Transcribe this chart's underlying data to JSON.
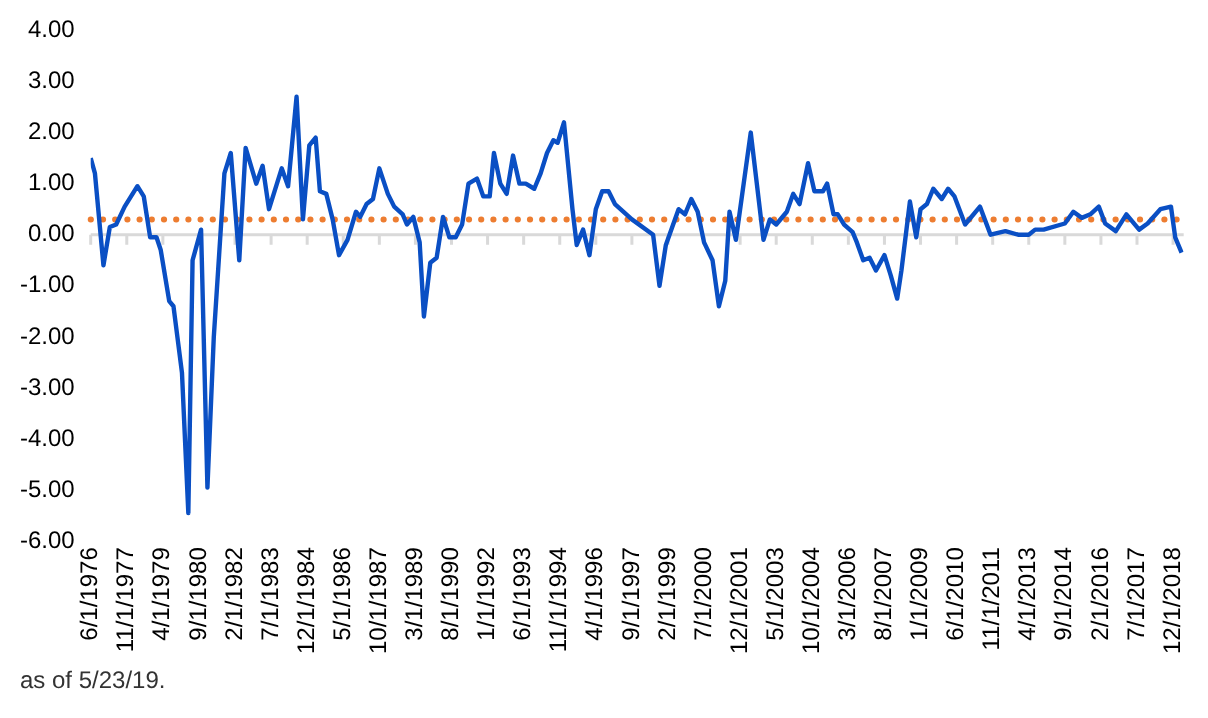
{
  "chart_data": {
    "type": "line",
    "x": [
      "1976-06",
      "1976-08",
      "1976-12",
      "1977-03",
      "1977-06",
      "1977-10",
      "1978-04",
      "1978-07",
      "1978-10",
      "1979-01",
      "1979-03",
      "1979-07",
      "1979-09",
      "1980-01",
      "1980-04",
      "1980-06",
      "1980-10",
      "1981-01",
      "1981-04",
      "1981-09",
      "1981-12",
      "1982-04",
      "1982-07",
      "1982-12",
      "1983-03",
      "1983-06",
      "1983-12",
      "1984-03",
      "1984-07",
      "1984-10",
      "1985-01",
      "1985-04",
      "1985-06",
      "1985-09",
      "1985-12",
      "1986-03",
      "1986-07",
      "1986-11",
      "1987-01",
      "1987-04",
      "1987-07",
      "1987-10",
      "1988-02",
      "1988-05",
      "1988-09",
      "1988-11",
      "1989-02",
      "1989-05",
      "1989-07",
      "1989-10",
      "1990-01",
      "1990-04",
      "1990-07",
      "1990-10",
      "1991-01",
      "1991-04",
      "1991-08",
      "1991-11",
      "1992-02",
      "1992-04",
      "1992-07",
      "1992-10",
      "1993-01",
      "1993-04",
      "1993-07",
      "1993-11",
      "1994-02",
      "1994-05",
      "1994-08",
      "1994-10",
      "1995-01",
      "1995-05",
      "1995-07",
      "1995-10",
      "1996-01",
      "1996-04",
      "1996-07",
      "1996-10",
      "1997-01",
      "1997-09",
      "1998-07",
      "1998-10",
      "1999-01",
      "1999-07",
      "1999-10",
      "2000-01",
      "2000-04",
      "2000-07",
      "2000-11",
      "2001-02",
      "2001-05",
      "2001-07",
      "2001-10",
      "2002-05",
      "2002-11",
      "2003-02",
      "2003-05",
      "2003-10",
      "2004-01",
      "2004-04",
      "2004-08",
      "2004-11",
      "2005-03",
      "2005-05",
      "2005-08",
      "2005-10",
      "2006-01",
      "2006-05",
      "2006-07",
      "2006-10",
      "2007-01",
      "2007-04",
      "2007-08",
      "2007-11",
      "2008-02",
      "2008-04",
      "2008-08",
      "2008-11",
      "2009-01",
      "2009-04",
      "2009-07",
      "2009-11",
      "2010-02",
      "2010-05",
      "2010-10",
      "2011-05",
      "2011-10",
      "2012-05",
      "2012-11",
      "2013-04",
      "2013-07",
      "2013-11",
      "2014-09",
      "2015-01",
      "2015-05",
      "2015-09",
      "2016-01",
      "2016-04",
      "2016-09",
      "2017-02",
      "2017-08",
      "2017-12",
      "2018-06",
      "2018-11",
      "2019-01",
      "2019-04"
    ],
    "series": [
      {
        "color": "#0a4fc4",
        "values": [
          1.5,
          1.2,
          -0.6,
          0.15,
          0.2,
          0.55,
          0.95,
          0.75,
          -0.05,
          -0.05,
          -0.3,
          -1.3,
          -1.4,
          -2.7,
          -5.45,
          -0.5,
          0.1,
          -4.95,
          -2.0,
          1.2,
          1.6,
          -0.5,
          1.7,
          1.0,
          1.35,
          0.5,
          1.3,
          0.95,
          2.7,
          0.3,
          1.75,
          1.9,
          0.85,
          0.8,
          0.3,
          -0.4,
          -0.1,
          0.45,
          0.35,
          0.6,
          0.7,
          1.3,
          0.8,
          0.55,
          0.4,
          0.2,
          0.35,
          -0.15,
          -1.6,
          -0.55,
          -0.45,
          0.35,
          -0.05,
          -0.05,
          0.2,
          1.0,
          1.1,
          0.75,
          0.75,
          1.6,
          1.0,
          0.8,
          1.55,
          1.0,
          1.0,
          0.9,
          1.2,
          1.6,
          1.85,
          1.8,
          2.2,
          0.5,
          -0.2,
          0.1,
          -0.4,
          0.5,
          0.85,
          0.85,
          0.6,
          0.3,
          0.0,
          -1.0,
          -0.2,
          0.5,
          0.4,
          0.7,
          0.45,
          -0.15,
          -0.5,
          -1.4,
          -0.9,
          0.45,
          -0.1,
          2.0,
          -0.1,
          0.3,
          0.2,
          0.45,
          0.8,
          0.6,
          1.4,
          0.85,
          0.85,
          1.0,
          0.4,
          0.4,
          0.2,
          0.05,
          -0.15,
          -0.5,
          -0.45,
          -0.7,
          -0.4,
          -0.8,
          -1.25,
          -0.7,
          0.65,
          -0.05,
          0.5,
          0.6,
          0.9,
          0.7,
          0.9,
          0.75,
          0.2,
          0.55,
          0.0,
          0.07,
          0.0,
          0.0,
          0.1,
          0.1,
          0.22,
          0.45,
          0.33,
          0.4,
          0.55,
          0.22,
          0.07,
          0.4,
          0.1,
          0.22,
          0.5,
          0.55,
          -0.05,
          -0.35
        ]
      }
    ],
    "xlim": [
      "1976-06",
      "2019-05"
    ],
    "xticks": [
      {
        "value": "1976-06",
        "label": "6/1/1976"
      },
      {
        "value": "1977-11",
        "label": "11/1/1977"
      },
      {
        "value": "1979-04",
        "label": "4/1/1979"
      },
      {
        "value": "1980-09",
        "label": "9/1/1980"
      },
      {
        "value": "1982-02",
        "label": "2/1/1982"
      },
      {
        "value": "1983-07",
        "label": "7/1/1983"
      },
      {
        "value": "1984-12",
        "label": "12/1/1984"
      },
      {
        "value": "1986-05",
        "label": "5/1/1986"
      },
      {
        "value": "1987-10",
        "label": "10/1/1987"
      },
      {
        "value": "1989-03",
        "label": "3/1/1989"
      },
      {
        "value": "1990-08",
        "label": "8/1/1990"
      },
      {
        "value": "1992-01",
        "label": "1/1/1992"
      },
      {
        "value": "1993-06",
        "label": "6/1/1993"
      },
      {
        "value": "1994-11",
        "label": "11/1/1994"
      },
      {
        "value": "1996-04",
        "label": "4/1/1996"
      },
      {
        "value": "1997-09",
        "label": "9/1/1997"
      },
      {
        "value": "1999-02",
        "label": "2/1/1999"
      },
      {
        "value": "2000-07",
        "label": "7/1/2000"
      },
      {
        "value": "2001-12",
        "label": "12/1/2001"
      },
      {
        "value": "2003-05",
        "label": "5/1/2003"
      },
      {
        "value": "2004-10",
        "label": "10/1/2004"
      },
      {
        "value": "2006-03",
        "label": "3/1/2006"
      },
      {
        "value": "2007-08",
        "label": "8/1/2007"
      },
      {
        "value": "2009-01",
        "label": "1/1/2009"
      },
      {
        "value": "2010-06",
        "label": "6/1/2010"
      },
      {
        "value": "2011-11",
        "label": "11/1/2011"
      },
      {
        "value": "2013-04",
        "label": "4/1/2013"
      },
      {
        "value": "2014-09",
        "label": "9/1/2014"
      },
      {
        "value": "2016-02",
        "label": "2/1/2016"
      },
      {
        "value": "2017-07",
        "label": "7/1/2017"
      },
      {
        "value": "2018-12",
        "label": "12/1/2018"
      }
    ],
    "ylim": [
      -6,
      4
    ],
    "yticks": [
      {
        "value": -6,
        "label": "-6.00"
      },
      {
        "value": -5,
        "label": "-5.00"
      },
      {
        "value": -4,
        "label": "-4.00"
      },
      {
        "value": -3,
        "label": "-3.00"
      },
      {
        "value": -2,
        "label": "-2.00"
      },
      {
        "value": -1,
        "label": "-1.00"
      },
      {
        "value": 0,
        "label": "0.00"
      },
      {
        "value": 1,
        "label": "1.00"
      },
      {
        "value": 2,
        "label": "2.00"
      },
      {
        "value": 3,
        "label": "3.00"
      },
      {
        "value": 4,
        "label": "4.00"
      }
    ],
    "ref_lines": [
      {
        "axis": "y",
        "value": 0,
        "color": "#d9d9d9",
        "line_style": "solid"
      },
      {
        "axis": "y",
        "value": 0.3,
        "color": "#ed7d31",
        "line_style": "dotted"
      }
    ],
    "annotations": [
      "as of 5/23/19."
    ],
    "marker": "none",
    "line_style": "solid",
    "legend": false
  }
}
